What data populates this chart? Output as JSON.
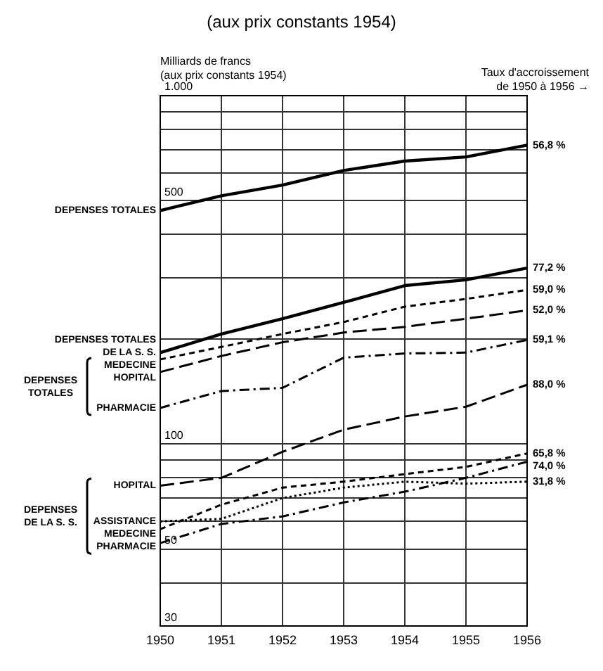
{
  "chart_data": {
    "type": "line",
    "title": "(aux prix constants 1954)",
    "ylabel": "Milliards de francs\n(aux prix constants 1954)",
    "categories": [
      "1950",
      "1951",
      "1952",
      "1953",
      "1954",
      "1955",
      "1956"
    ],
    "series": [
      {
        "name": "DEPENSES TOTALES",
        "color": "#000000",
        "line_style": "solid",
        "values": [
          468,
          516,
          554,
          610,
          649,
          667,
          721
        ]
      },
      {
        "name": "DEPENSES TOTALES DE LA S. S.",
        "color": "#000000",
        "line_style": "solid",
        "values": [
          183,
          207,
          229,
          255,
          285,
          296,
          320
        ]
      },
      {
        "name": "MEDECINE",
        "color": "#000000",
        "line_style": "dashed",
        "values": [
          175,
          190,
          207,
          224,
          248,
          261,
          277
        ]
      },
      {
        "name": "HOPITAL",
        "color": "#000000",
        "line_style": "longdash",
        "values": [
          161,
          179,
          196,
          209,
          217,
          229,
          242
        ]
      },
      {
        "name": "PHARMACIE",
        "color": "#000000",
        "line_style": "dashdot",
        "values": [
          127,
          142,
          145,
          177,
          182,
          183,
          199
        ]
      },
      {
        "name": "HOPITAL",
        "color": "#000000",
        "line_style": "longdash",
        "values": [
          76,
          80,
          95,
          110,
          120,
          128,
          148
        ]
      },
      {
        "name": "ASSISTANCE",
        "color": "#000000",
        "line_style": "dotted",
        "values": [
          60,
          61,
          70,
          75,
          78,
          77,
          78
        ]
      },
      {
        "name": "MEDECINE",
        "color": "#000000",
        "line_style": "dashed",
        "values": [
          57,
          67,
          75,
          78,
          82,
          86,
          94
        ]
      },
      {
        "name": "PHARMACIE",
        "color": "#000000",
        "line_style": "dashdot",
        "values": [
          52,
          59,
          62,
          68,
          73,
          80,
          89
        ]
      }
    ],
    "log": true,
    "ylim": [
      30,
      1000
    ],
    "yticks": [
      30,
      {
        "value": 40,
        "label": null
      },
      50,
      {
        "value": 60,
        "label": null
      },
      {
        "value": 70,
        "label": null
      },
      {
        "value": 80,
        "label": null
      },
      {
        "value": 90,
        "label": null
      },
      100,
      {
        "value": 200,
        "label": null
      },
      {
        "value": 300,
        "label": null
      },
      {
        "value": 400,
        "label": null
      },
      500,
      {
        "value": 600,
        "label": null
      },
      {
        "value": 700,
        "label": null
      },
      {
        "value": 800,
        "label": null
      },
      {
        "value": 900,
        "label": null
      },
      {
        "value": 1000,
        "label": "1.000"
      }
    ],
    "grid": true,
    "legend": false,
    "marker": "none",
    "annotations": [
      "Taux d'accroissement\nde 1950 à 1956 →",
      "DEPENSES TOTALES",
      "DEPENSES DE LA S. S.",
      {
        "text": "56,8 %",
        "x": "1956",
        "y": 721
      },
      {
        "text": "77,2 %",
        "x": "1956",
        "y": 320
      },
      {
        "text": "59,0 %",
        "x": "1956",
        "y": 277
      },
      {
        "text": "52,0 %",
        "x": "1956",
        "y": 242
      },
      {
        "text": "59,1 %",
        "x": "1956",
        "y": 199
      },
      {
        "text": "88,0 %",
        "x": "1956",
        "y": 148
      },
      {
        "text": "65,8 %",
        "x": "1956",
        "y": 94
      },
      {
        "text": "74,0 %",
        "x": "1956",
        "y": 89
      },
      {
        "text": "31,8 %",
        "x": "1956",
        "y": 78
      }
    ]
  }
}
